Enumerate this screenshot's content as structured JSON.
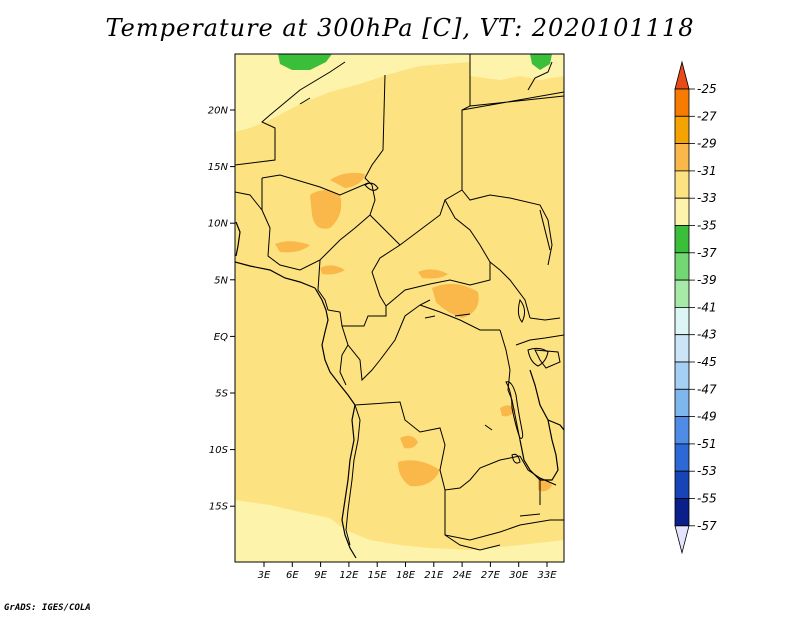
{
  "title": "Temperature at 300hPa [C], VT: 2020101118",
  "footer": "GrADS: IGES/COLA",
  "map": {
    "lat_labels": [
      "20N",
      "15N",
      "10N",
      "5N",
      "EQ",
      "5S",
      "10S",
      "15S"
    ],
    "lon_labels": [
      "3E",
      "6E",
      "9E",
      "12E",
      "15E",
      "18E",
      "21E",
      "24E",
      "27E",
      "30E",
      "33E"
    ]
  },
  "colorbar": {
    "labels": [
      "-25",
      "-27",
      "-29",
      "-31",
      "-33",
      "-35",
      "-37",
      "-39",
      "-41",
      "-43",
      "-45",
      "-47",
      "-49",
      "-51",
      "-53",
      "-55",
      "-57"
    ],
    "colors": [
      "#e34a00",
      "#f77b00",
      "#f5a300",
      "#fab84a",
      "#fde281",
      "#fef3aa",
      "#3bbf3b",
      "#73d873",
      "#a7eaa7",
      "#dcf6f6",
      "#cbe4f6",
      "#a5cff3",
      "#7eb6ee",
      "#4f8ce8",
      "#2c68d6",
      "#1744b7",
      "#0a1f8a"
    ],
    "top_color": "#e84a1a",
    "bottom_color": "#e4e4ff"
  },
  "palette": {
    "base": "#fde281",
    "light": "#fef3aa",
    "warm": "#fab84a",
    "green": "#3bbf3b",
    "border": "#000000"
  }
}
